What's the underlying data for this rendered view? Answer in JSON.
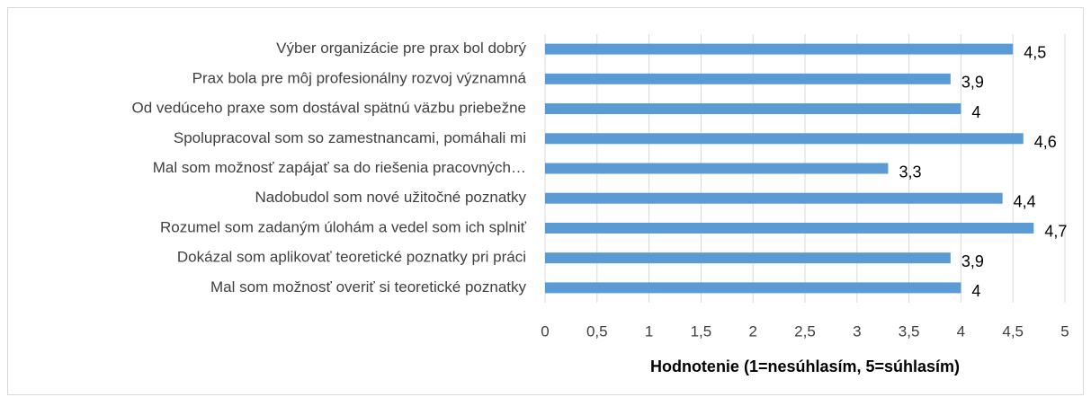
{
  "chart_data": {
    "type": "bar",
    "orientation": "horizontal",
    "x_label": "Hodnotenie (1=nesúhlasím, 5=súhlasím)",
    "categories": [
      "Výber organizácie pre prax bol dobrý",
      "Prax bola pre môj profesionálny rozvoj významná",
      "Od vedúceho praxe som dostával spätnú väzbu priebežne",
      "Spolupracoval som so zamestnancami, pomáhali mi",
      "Mal som možnosť zapájať sa do riešenia pracovných…",
      "Nadobudol som nové užitočné poznatky",
      "Rozumel som zadaným úlohám a vedel som ich splniť",
      "Dokázal som aplikovať teoretické poznatky pri práci",
      "Mal som možnosť overiť si teoretické poznatky"
    ],
    "values": [
      4.5,
      3.9,
      4,
      4.6,
      3.3,
      4.4,
      4.7,
      3.9,
      4
    ],
    "value_labels": [
      "4,5",
      "3,9",
      "4",
      "4,6",
      "3,3",
      "4,4",
      "4,7",
      "3,9",
      "4"
    ],
    "color": "#5b9bd5",
    "xlim": [
      0,
      5
    ],
    "xticks": [
      0,
      {
        "value": 0.5,
        "label": "0,5"
      },
      1,
      {
        "value": 1.5,
        "label": "1,5"
      },
      2,
      {
        "value": 2.5,
        "label": "2,5"
      },
      3,
      {
        "value": 3.5,
        "label": "3,5"
      },
      4,
      {
        "value": 4.5,
        "label": "4,5"
      },
      5
    ],
    "grid": true
  }
}
